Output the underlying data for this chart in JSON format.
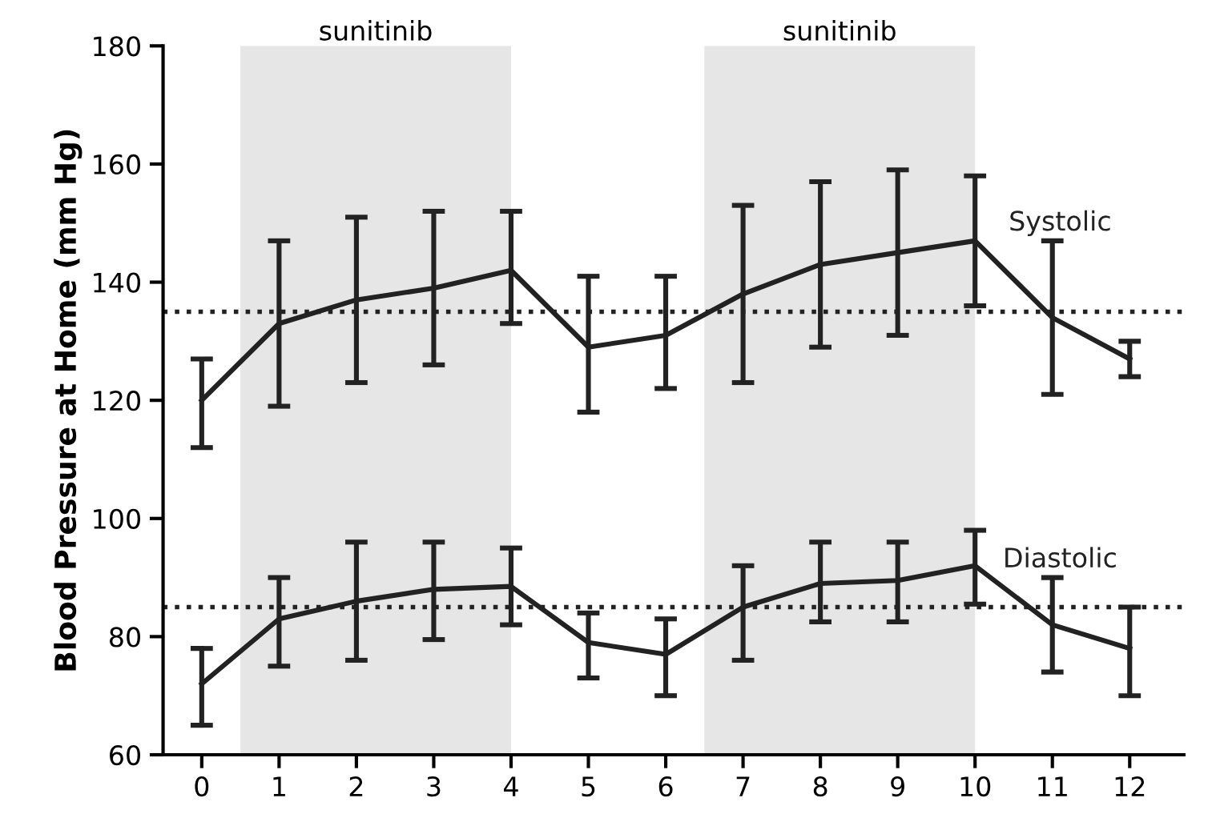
{
  "chart_data": {
    "type": "line",
    "ylabel": "Blood Pressure at Home (mm Hg)",
    "x": [
      0,
      1,
      2,
      3,
      4,
      5,
      6,
      7,
      8,
      9,
      10,
      11,
      12
    ],
    "series": [
      {
        "name": "Systolic",
        "color": "#222222",
        "values": [
          120,
          133,
          137,
          139,
          142,
          129,
          131,
          138,
          143,
          145,
          147,
          134,
          127
        ],
        "errors": [
          [
            112,
            127
          ],
          [
            119,
            147
          ],
          [
            123,
            151
          ],
          [
            126,
            152
          ],
          [
            133,
            152
          ],
          [
            118,
            141
          ],
          [
            122,
            141
          ],
          [
            123,
            153
          ],
          [
            129,
            157
          ],
          [
            131,
            159
          ],
          [
            136,
            158
          ],
          [
            121,
            147
          ],
          [
            124,
            130
          ]
        ]
      },
      {
        "name": "Diastolic",
        "color": "#222222",
        "values": [
          72,
          83,
          86,
          88,
          88.5,
          79,
          77,
          85,
          89,
          89.5,
          92,
          82,
          78
        ],
        "errors": [
          [
            65,
            78
          ],
          [
            75,
            90
          ],
          [
            76,
            96
          ],
          [
            79.5,
            96
          ],
          [
            82,
            95
          ],
          [
            73,
            84
          ],
          [
            70,
            83
          ],
          [
            76,
            92
          ],
          [
            82.5,
            96
          ],
          [
            82.5,
            96
          ],
          [
            85.5,
            98
          ],
          [
            74,
            90
          ],
          [
            70,
            85
          ]
        ]
      }
    ],
    "xlim": [
      -0.5,
      12.7
    ],
    "xticks": [
      0,
      1,
      2,
      3,
      4,
      5,
      6,
      7,
      8,
      9,
      10,
      11,
      12
    ],
    "ylim": [
      60,
      180
    ],
    "yticks": [
      60,
      80,
      100,
      120,
      140,
      160,
      180
    ],
    "ref_lines": [
      {
        "axis": "y",
        "value": 135,
        "line_style": "dotted",
        "color": "#222222"
      },
      {
        "axis": "y",
        "value": 85,
        "line_style": "dotted",
        "color": "#222222"
      }
    ],
    "bands": [
      {
        "axis": "x",
        "from": 0.5,
        "to": 4,
        "label": "sunitinib",
        "color": "#e6e6e6"
      },
      {
        "axis": "x",
        "from": 6.5,
        "to": 10,
        "label": "sunitinib",
        "color": "#e6e6e6"
      }
    ],
    "grid": false,
    "legend": false,
    "marker": "none",
    "line_style": "solid"
  }
}
